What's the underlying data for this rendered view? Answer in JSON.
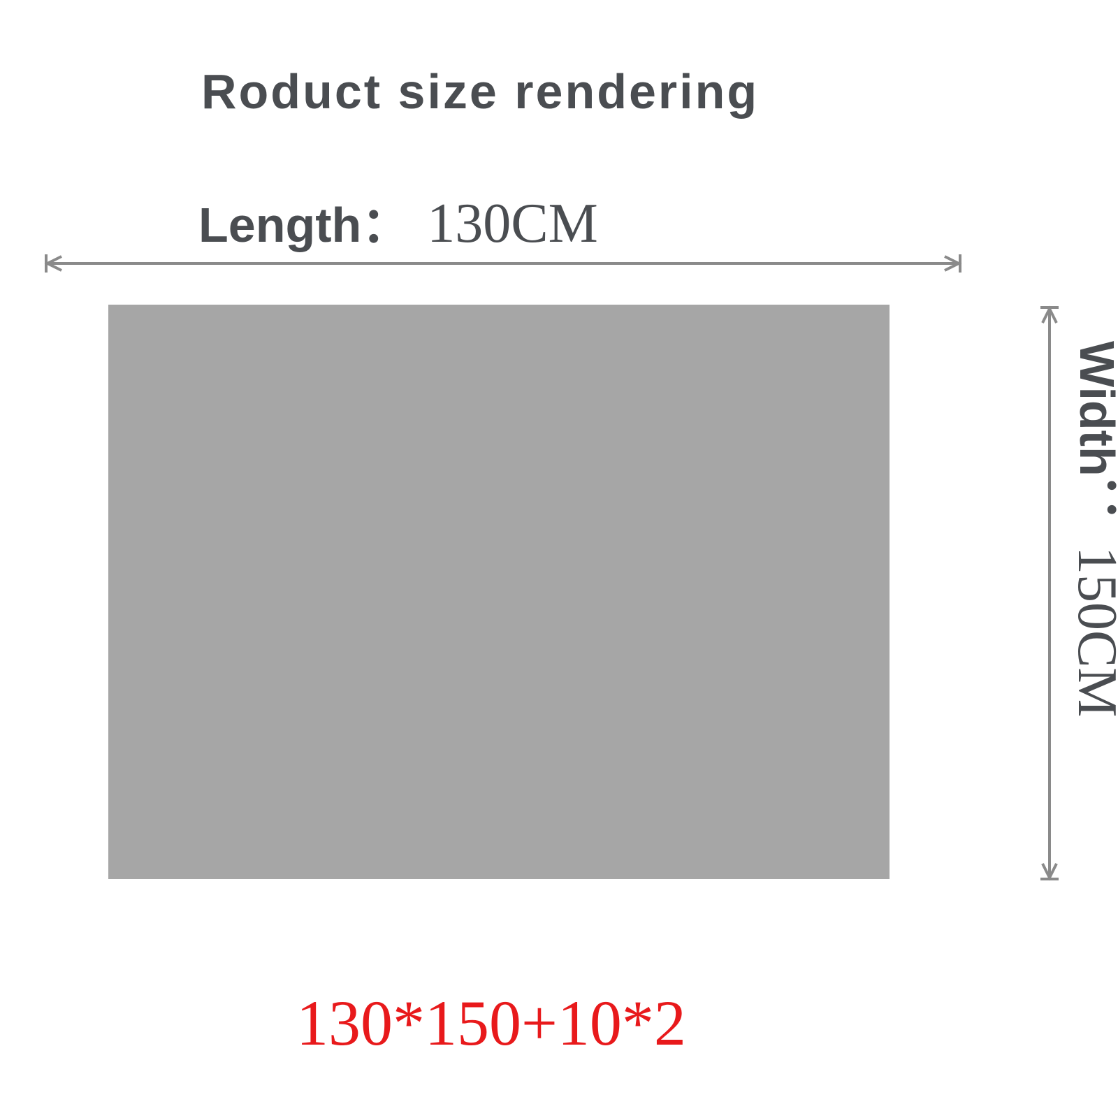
{
  "title": "Roduct size rendering",
  "length": {
    "label": "Length：",
    "value": "130CM"
  },
  "width": {
    "label": "Width：",
    "value": "150CM"
  },
  "formula": "130*150+10*2",
  "colors": {
    "text": "#4a4d51",
    "product": "#a6a6a6",
    "dimension_line": "#8a8a8a",
    "formula": "#e8191b"
  }
}
